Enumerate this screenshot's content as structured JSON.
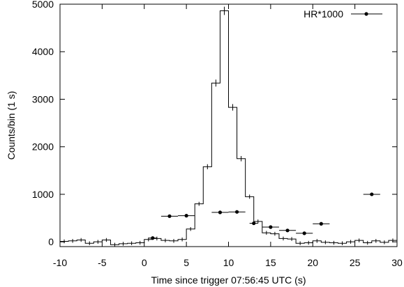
{
  "chart_data": {
    "type": "line",
    "title": "",
    "xlabel": "Time since trigger 07:56:45 UTC (s)",
    "ylabel": "Counts/bin (1 s)",
    "xlim": [
      -10,
      30
    ],
    "ylim": [
      -100,
      5000
    ],
    "xticks": [
      -10,
      -5,
      0,
      5,
      10,
      15,
      20,
      25,
      30
    ],
    "xtick_labels": [
      "-10",
      "-5",
      "0",
      "5",
      "10",
      "15",
      "20",
      "25",
      "30"
    ],
    "yticks": [
      0,
      1000,
      2000,
      3000,
      4000,
      5000
    ],
    "ytick_labels": [
      "0",
      "1000",
      "2000",
      "3000",
      "4000",
      "5000"
    ],
    "legend_position": "top-right",
    "grid": false,
    "series": [
      {
        "style": "histogram-step-with-errorbars",
        "color": "#000000",
        "x_centers": [
          -9.5,
          -8.5,
          -7.5,
          -6.5,
          -5.5,
          -4.5,
          -3.5,
          -2.5,
          -1.5,
          -0.5,
          0.5,
          1.5,
          2.5,
          3.5,
          4.5,
          5.5,
          6.5,
          7.5,
          8.5,
          9.5,
          10.5,
          11.5,
          12.5,
          13.5,
          14.5,
          15.5,
          16.5,
          17.5,
          18.5,
          19.5,
          20.5,
          21.5,
          22.5,
          23.5,
          24.5,
          25.5,
          26.5,
          27.5,
          28.5,
          29.5
        ],
        "values": [
          10,
          20,
          40,
          -30,
          0,
          40,
          -60,
          -40,
          -30,
          -20,
          50,
          70,
          30,
          20,
          50,
          270,
          800,
          1580,
          3340,
          4860,
          2830,
          1750,
          950,
          430,
          190,
          170,
          70,
          60,
          -30,
          -20,
          20,
          -10,
          -20,
          -30,
          0,
          30,
          -20,
          20,
          -10,
          30
        ]
      },
      {
        "name": "HR*1000",
        "style": "points-with-xerror",
        "color": "#000000",
        "x": [
          1,
          3,
          5,
          9,
          11,
          13,
          15,
          17,
          19,
          21,
          27
        ],
        "xerr": [
          0.5,
          1,
          1,
          1,
          1,
          0.5,
          1,
          1,
          1,
          1,
          1
        ],
        "y": [
          80,
          540,
          550,
          620,
          630,
          390,
          310,
          240,
          180,
          380,
          1000
        ]
      }
    ]
  }
}
